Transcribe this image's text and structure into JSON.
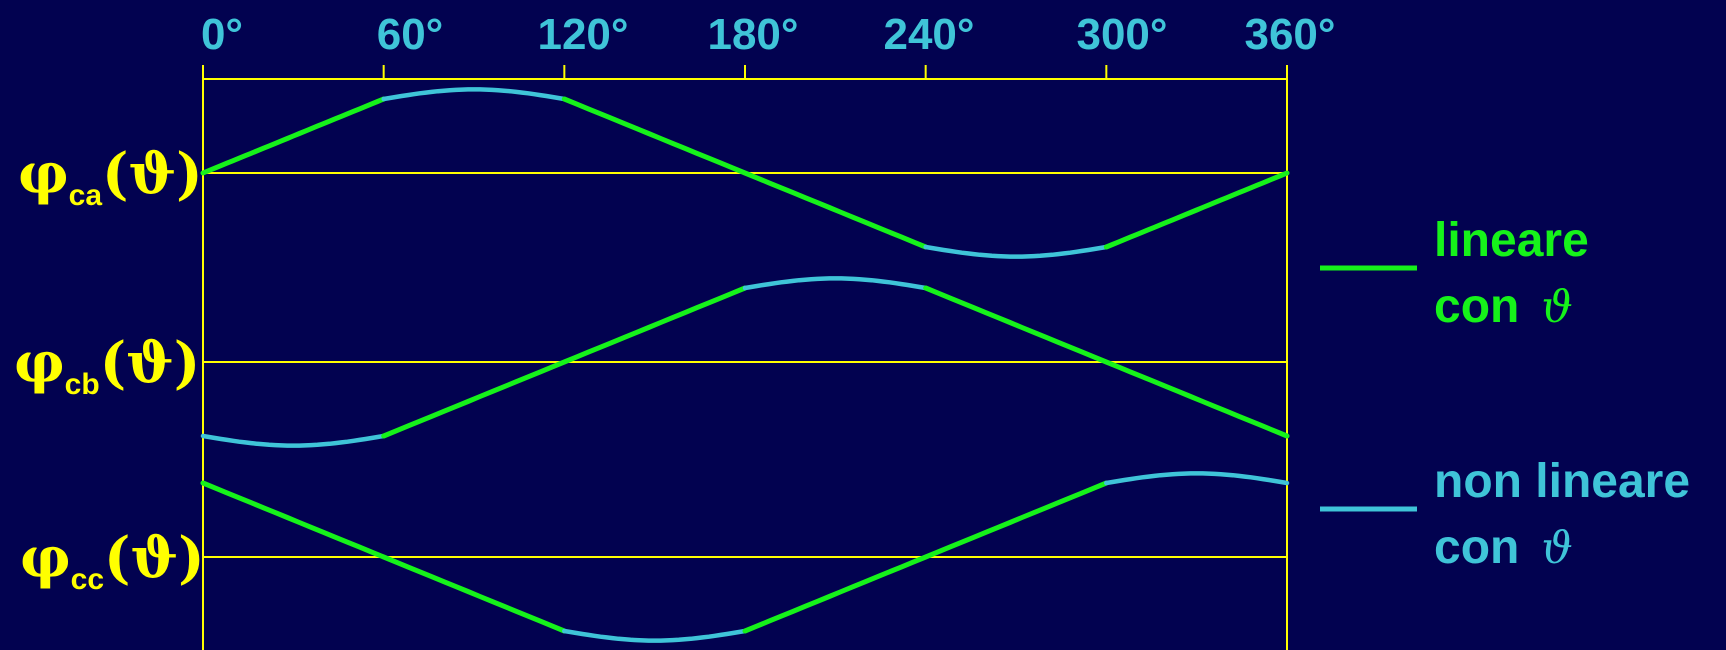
{
  "colors": {
    "background": "#020250",
    "frame": "#ffff00",
    "linear": "#16f21a",
    "nonlinear": "#3fc4d8",
    "labels": "#ffff00",
    "ticks": "#3fc4d8"
  },
  "x_ticks": [
    "0°",
    "60°",
    "120°",
    "180°",
    "240°",
    "300°",
    "360°"
  ],
  "rows": [
    {
      "symbol": "φ",
      "subscript": "ca",
      "argument": "(ϑ)",
      "segments": [
        {
          "kind": "linear",
          "from": 0,
          "to": 60
        },
        {
          "kind": "nonlinear",
          "from": 60,
          "to": 120
        },
        {
          "kind": "linear",
          "from": 120,
          "to": 240
        },
        {
          "kind": "nonlinear",
          "from": 240,
          "to": 300
        },
        {
          "kind": "linear",
          "from": 300,
          "to": 360
        }
      ]
    },
    {
      "symbol": "φ",
      "subscript": "cb",
      "argument": "(ϑ)",
      "segments": [
        {
          "kind": "nonlinear",
          "from": 0,
          "to": 60
        },
        {
          "kind": "linear",
          "from": 60,
          "to": 180
        },
        {
          "kind": "nonlinear",
          "from": 180,
          "to": 240
        },
        {
          "kind": "linear",
          "from": 240,
          "to": 360
        }
      ]
    },
    {
      "symbol": "φ",
      "subscript": "cc",
      "argument": "(ϑ)",
      "segments": [
        {
          "kind": "linear",
          "from": 0,
          "to": 120
        },
        {
          "kind": "nonlinear",
          "from": 120,
          "to": 180
        },
        {
          "kind": "linear",
          "from": 180,
          "to": 300
        },
        {
          "kind": "nonlinear",
          "from": 300,
          "to": 360
        }
      ]
    }
  ],
  "legend": [
    {
      "kind": "linear",
      "line1": "lineare",
      "line2": "con",
      "theta": "ϑ"
    },
    {
      "kind": "nonlinear",
      "line1": "non lineare",
      "line2": "con",
      "theta": "ϑ"
    }
  ]
}
